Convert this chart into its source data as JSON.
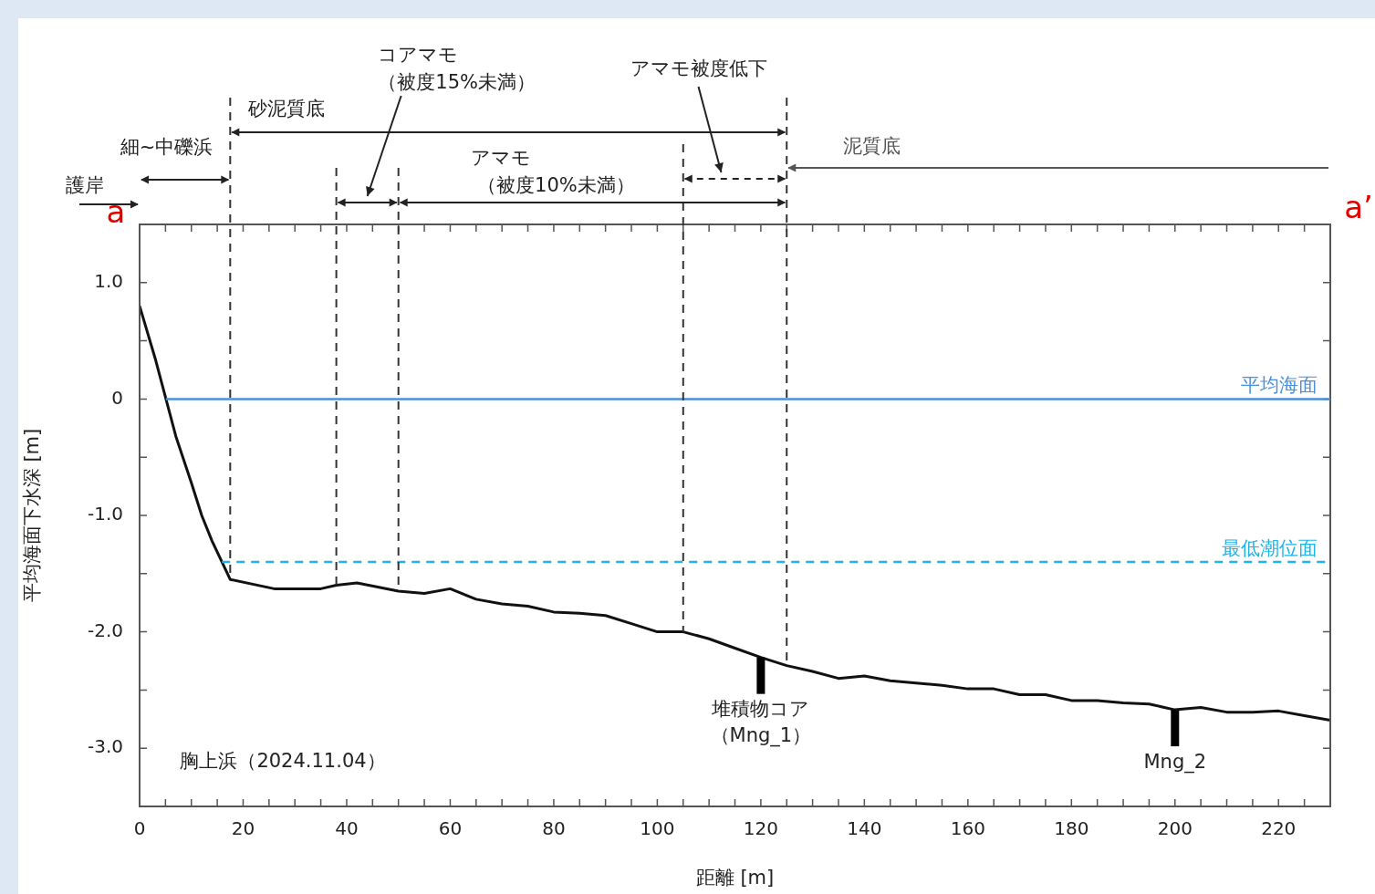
{
  "chart_data": {
    "type": "line",
    "xlabel": "距離 [m]",
    "ylabel": "平均海面下水深 [m]",
    "x": [
      0,
      3,
      7,
      10,
      12,
      14,
      17.5,
      26,
      35,
      38,
      42,
      50,
      55,
      60,
      65,
      70,
      75,
      80,
      85,
      90,
      95,
      100,
      105,
      110,
      115,
      120,
      125,
      130,
      135,
      140,
      145,
      150,
      155,
      160,
      165,
      170,
      175,
      180,
      185,
      190,
      195,
      200,
      205,
      210,
      215,
      220,
      225,
      230
    ],
    "series": [
      {
        "color": "#111111",
        "values": [
          0.8,
          0.35,
          -0.32,
          -0.72,
          -1.0,
          -1.22,
          -1.55,
          -1.63,
          -1.63,
          -1.6,
          -1.58,
          -1.65,
          -1.67,
          -1.63,
          -1.72,
          -1.76,
          -1.78,
          -1.83,
          -1.84,
          -1.86,
          -1.93,
          -2.0,
          -2.0,
          -2.06,
          -2.14,
          -2.22,
          -2.29,
          -2.34,
          -2.4,
          -2.38,
          -2.42,
          -2.44,
          -2.46,
          -2.49,
          -2.49,
          -2.54,
          -2.54,
          -2.59,
          -2.59,
          -2.61,
          -2.62,
          -2.67,
          -2.65,
          -2.69,
          -2.69,
          -2.68,
          -2.72,
          -2.76
        ]
      }
    ],
    "marker": "none",
    "xlim": [
      0,
      230
    ],
    "xticks": [
      0,
      {
        "value": 5,
        "label": null
      },
      {
        "value": 10,
        "label": null
      },
      {
        "value": 15,
        "label": null
      },
      20,
      {
        "value": 25,
        "label": null
      },
      {
        "value": 30,
        "label": null
      },
      {
        "value": 35,
        "label": null
      },
      40,
      {
        "value": 45,
        "label": null
      },
      {
        "value": 50,
        "label": null
      },
      {
        "value": 55,
        "label": null
      },
      60,
      {
        "value": 65,
        "label": null
      },
      {
        "value": 70,
        "label": null
      },
      {
        "value": 75,
        "label": null
      },
      80,
      {
        "value": 85,
        "label": null
      },
      {
        "value": 90,
        "label": null
      },
      {
        "value": 95,
        "label": null
      },
      100,
      {
        "value": 105,
        "label": null
      },
      {
        "value": 110,
        "label": null
      },
      {
        "value": 115,
        "label": null
      },
      120,
      {
        "value": 125,
        "label": null
      },
      {
        "value": 130,
        "label": null
      },
      {
        "value": 135,
        "label": null
      },
      140,
      {
        "value": 145,
        "label": null
      },
      {
        "value": 150,
        "label": null
      },
      {
        "value": 155,
        "label": null
      },
      160,
      {
        "value": 165,
        "label": null
      },
      {
        "value": 170,
        "label": null
      },
      {
        "value": 175,
        "label": null
      },
      180,
      {
        "value": 185,
        "label": null
      },
      {
        "value": 190,
        "label": null
      },
      {
        "value": 195,
        "label": null
      },
      200,
      {
        "value": 205,
        "label": null
      },
      {
        "value": 210,
        "label": null
      },
      {
        "value": 215,
        "label": null
      },
      220,
      {
        "value": 225,
        "label": null
      }
    ],
    "ylim": [
      -3.5,
      1.5
    ],
    "yticks": [
      {
        "value": -3,
        "label": "-3.0"
      },
      {
        "value": -2.5,
        "label": null
      },
      {
        "value": -2,
        "label": "-2.0"
      },
      {
        "value": -1.5,
        "label": null
      },
      {
        "value": -1,
        "label": "-1.0"
      },
      {
        "value": -0.5,
        "label": null
      },
      0,
      {
        "value": 0.5,
        "label": null
      },
      {
        "value": 1,
        "label": "1.0"
      }
    ],
    "ref_lines": [
      {
        "axis": "y",
        "value": 0,
        "label": "平均海面",
        "color": "#4a90d9",
        "line_style": "solid"
      },
      {
        "axis": "y",
        "value": -1.4,
        "label": "最低潮位面",
        "color": "#1eb4ea",
        "line_style": "dashed"
      },
      {
        "axis": "x",
        "value": 17.5,
        "color": "#333333",
        "line_style": "dashed"
      },
      {
        "axis": "x",
        "value": 38,
        "color": "#333333",
        "line_style": "dashed"
      },
      {
        "axis": "x",
        "value": 50,
        "color": "#333333",
        "line_style": "dashed"
      },
      {
        "axis": "x",
        "value": 105,
        "color": "#333333",
        "line_style": "dashed"
      },
      {
        "axis": "x",
        "value": 125,
        "color": "#333333",
        "line_style": "dashed"
      }
    ],
    "annotations": [
      "護岸",
      "a",
      "a’",
      "胸上浜（2024.11.04）",
      "細~中礫浜",
      "砂泥質底",
      "コアマモ（被度15%未満）",
      "アマモ（被度10%未満）",
      "アマモ被度低下",
      "泥質底",
      {
        "text": "堆積物コア（Mng_1）",
        "x": 120,
        "y": -2.22
      },
      {
        "text": "Mng_2",
        "x": 200,
        "y": -2.67
      }
    ]
  }
}
